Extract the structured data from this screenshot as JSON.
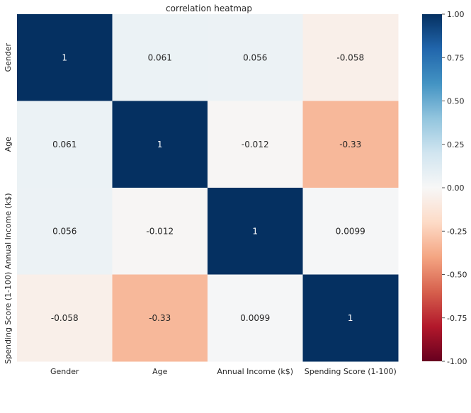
{
  "chart_data": {
    "type": "heatmap",
    "title": "correlation heatmap",
    "xlabel": "",
    "ylabel": "",
    "x_categories": [
      "Gender",
      "Age",
      "Annual Income (k$)",
      "Spending Score (1-100)"
    ],
    "y_categories": [
      "Gender",
      "Age",
      "Annual Income (k$)",
      "Spending Score (1-100)"
    ],
    "values": [
      [
        1,
        0.061,
        0.056,
        -0.058
      ],
      [
        0.061,
        1,
        -0.012,
        -0.33
      ],
      [
        0.056,
        -0.012,
        1,
        0.0099
      ],
      [
        -0.058,
        -0.33,
        0.0099,
        1
      ]
    ],
    "annotations": [
      [
        "1",
        "0.061",
        "0.056",
        "-0.058"
      ],
      [
        "0.061",
        "1",
        "-0.012",
        "-0.33"
      ],
      [
        "0.056",
        "-0.012",
        "1",
        "0.0099"
      ],
      [
        "-0.058",
        "-0.33",
        "0.0099",
        "1"
      ]
    ],
    "colormap": "RdBu",
    "vmin": -1,
    "vmax": 1,
    "colorbar_ticks": [
      "1.00",
      "0.75",
      "0.50",
      "0.25",
      "0.00",
      "-0.25",
      "-0.50",
      "-0.75",
      "-1.00"
    ],
    "colorbar_tick_values": [
      1,
      0.75,
      0.5,
      0.25,
      0,
      -0.25,
      -0.5,
      -0.75,
      -1
    ],
    "colorbar_placement": "right",
    "grid": false
  }
}
